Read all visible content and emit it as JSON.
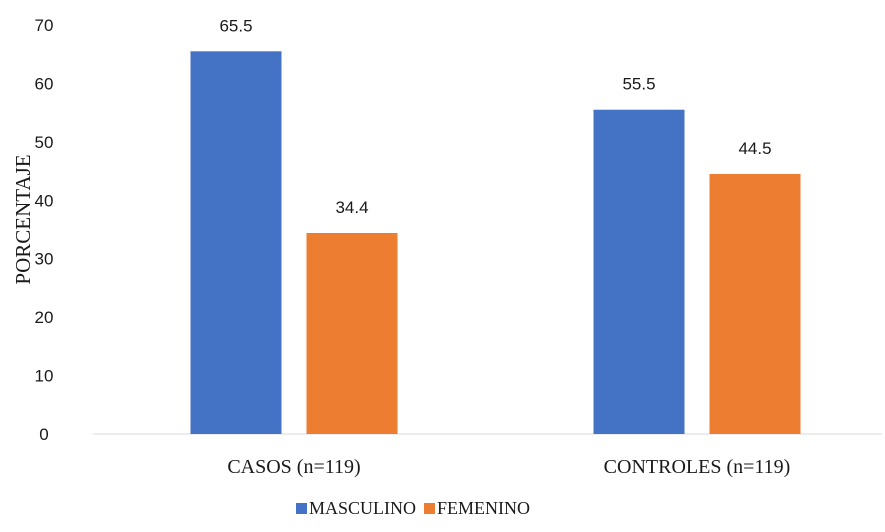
{
  "chart_data": {
    "type": "bar",
    "categories": [
      "CASOS (n=119)",
      "CONTROLES (n=119)"
    ],
    "series": [
      {
        "name": "MASCULINO",
        "values": [
          65.5,
          55.5
        ],
        "color": "#4472C4"
      },
      {
        "name": "FEMENINO",
        "values": [
          34.4,
          44.5
        ],
        "color": "#ED7D31"
      }
    ],
    "title": "",
    "xlabel": "",
    "ylabel": "PORCENTAJE",
    "ylim": [
      0,
      70
    ],
    "yticks": [
      0,
      10,
      20,
      30,
      40,
      50,
      60,
      70
    ],
    "grid": false,
    "legend": "bottom",
    "data_labels": true
  }
}
